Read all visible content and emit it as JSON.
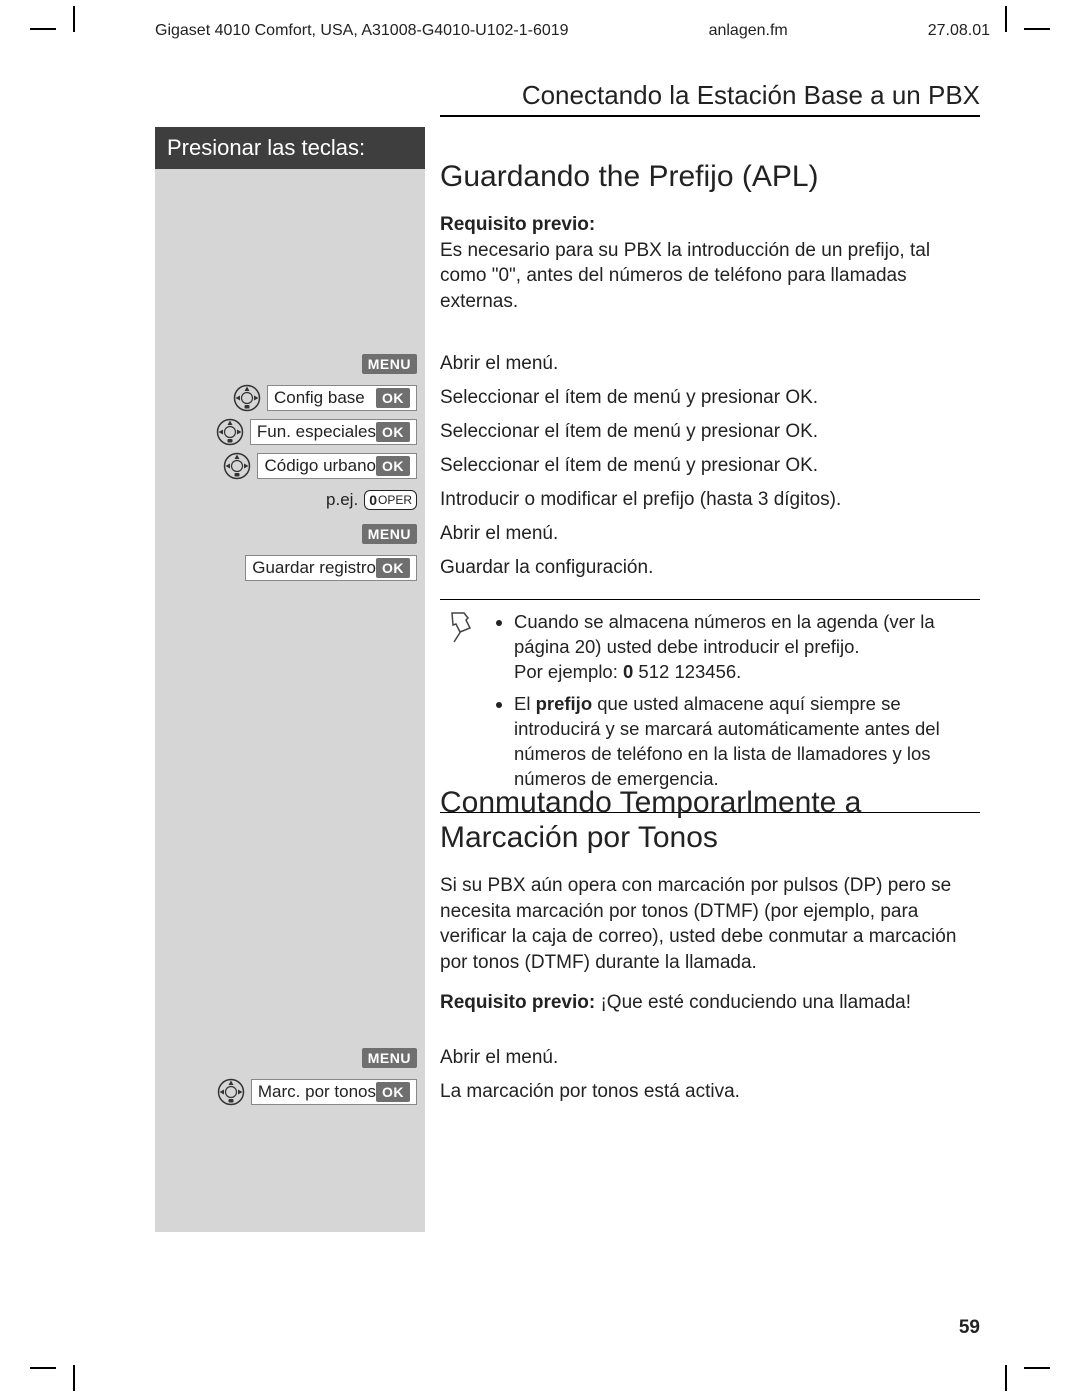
{
  "header": {
    "doc_id": "Gigaset 4010 Comfort, USA, A31008-G4010-U102-1-6019",
    "file": "anlagen.fm",
    "date": "27.08.01"
  },
  "section_title": "Conectando la Estación Base a un PBX",
  "left_col_title": "Presionar las teclas:",
  "s1": {
    "title": "Guardando the Prefijo (APL)",
    "req_label": "Requisito previo",
    "req_text": "Es necesario para su PBX la introducción de un prefijo, tal como \"0\", antes del números de teléfono para llamadas externas.",
    "steps": [
      {
        "left_type": "menu_badge",
        "menu": "MENU",
        "desc": "Abrir el menú."
      },
      {
        "left_type": "nav_menu_ok",
        "label": "Config base",
        "ok": "OK",
        "desc": "Seleccionar el ítem de menú y presionar OK."
      },
      {
        "left_type": "nav_menu_ok",
        "label": "Fun. especiales",
        "ok": "OK",
        "desc": "Seleccionar el ítem de menú y presionar OK."
      },
      {
        "left_type": "nav_menu_ok",
        "label": "Código urbano",
        "ok": "OK",
        "desc": "Seleccionar el ítem de menú y presionar OK."
      },
      {
        "left_type": "pe_key",
        "pe": "p.ej.",
        "key0": "0",
        "keytext": "OPER",
        "desc": "Introducir o modificar el prefijo (hasta 3 dígitos)."
      },
      {
        "left_type": "menu_badge",
        "menu": "MENU",
        "desc": "Abrir el menú."
      },
      {
        "left_type": "menu_ok",
        "label": "Guardar registro",
        "ok": "OK",
        "desc": "Guardar la configuración."
      }
    ],
    "note": {
      "b1a": "Cuando se almacena números en la agenda (ver la página 20) usted debe introducir el prefijo.",
      "b1b_pre": "Por ejemplo: ",
      "b1b_bold": "0",
      "b1b_post": " 512 123456.",
      "b2_pre": "El ",
      "b2_bold": "prefijo",
      "b2_post": " que usted almacene aquí siempre se introducirá y se marcará automáticamente antes del números de teléfono en la lista de llamadores y los números de emergencia."
    }
  },
  "s2": {
    "title": "Conmutando Temporarlmente a Marcación por Tonos",
    "body": "Si su PBX aún opera con marcación por pulsos (DP) pero se necesita marcación por tonos (DTMF) (por ejemplo, para verificar la caja de correo), usted debe conmutar a marcación por tonos (DTMF) durante la llamada.",
    "req_label": "Requisito previo:",
    "req_text": " ¡Que esté conduciendo una llamada!",
    "steps": [
      {
        "left_type": "menu_badge",
        "menu": "MENU",
        "desc": "Abrir el menú."
      },
      {
        "left_type": "nav_menu_ok",
        "label": "Marc. por tonos",
        "ok": "OK",
        "desc": "La marcación por tonos está activa."
      }
    ]
  },
  "page_number": "59",
  "colors": {
    "left_bg": "#d6d6d6",
    "left_title_bg": "#3e3e3e",
    "badge_bg": "#6f6f6f"
  }
}
